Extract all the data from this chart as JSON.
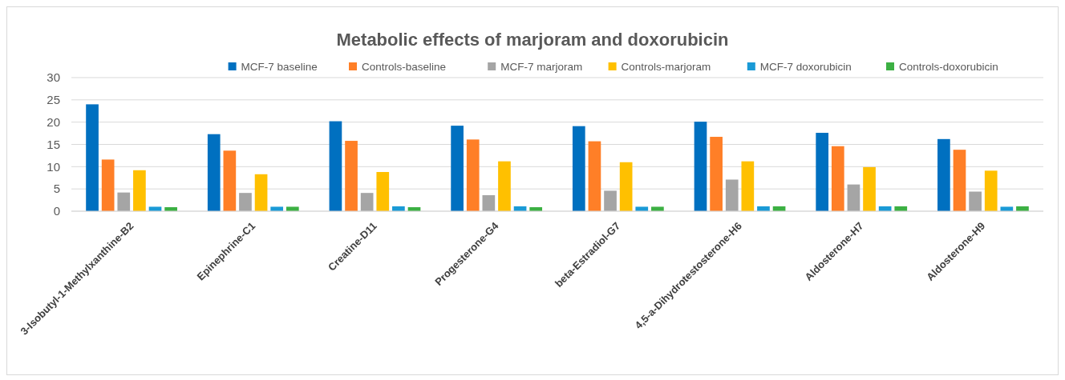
{
  "chart_data": {
    "type": "bar",
    "title": "Metabolic effects of marjoram and doxorubicin",
    "categories": [
      "3-Isobutyl-1-Methylxanthine-B2",
      "Epinephrine-C1",
      "Creatine-D11",
      "Progesterone-G4",
      "beta-Estradiol-G7",
      "4,5-a-Dihydrotestosterone-H6",
      "Aldosterone-H7",
      "Aldosterone-H9"
    ],
    "series": [
      {
        "name": "MCF-7 baseline",
        "color": "#0070c0",
        "values": [
          24,
          17.3,
          20.2,
          19.2,
          19.1,
          20.1,
          17.6,
          16.2
        ]
      },
      {
        "name": "Controls-baseline",
        "color": "#ff7f27",
        "values": [
          11.6,
          13.6,
          15.8,
          16.1,
          15.7,
          16.7,
          14.6,
          13.8
        ]
      },
      {
        "name": "MCF-7 marjoram",
        "color": "#a5a5a5",
        "values": [
          4.2,
          4.1,
          4.1,
          3.6,
          4.6,
          7.1,
          6,
          4.4
        ]
      },
      {
        "name": "Controls-marjoram",
        "color": "#ffc000",
        "values": [
          9.2,
          8.3,
          8.8,
          11.2,
          11,
          11.2,
          9.9,
          9.1
        ]
      },
      {
        "name": "MCF-7 doxorubicin",
        "color": "#1a9ad6",
        "values": [
          1,
          1,
          1.1,
          1.1,
          1,
          1.1,
          1.1,
          1
        ]
      },
      {
        "name": "Controls-doxorubicin",
        "color": "#3cb043",
        "values": [
          0.9,
          1,
          0.9,
          0.9,
          1,
          1.1,
          1.1,
          1.1
        ]
      }
    ],
    "ylim": [
      0,
      30
    ],
    "yticks": [
      0,
      5,
      10,
      15,
      20,
      25,
      30
    ],
    "grid": "y",
    "legend": "top right"
  }
}
